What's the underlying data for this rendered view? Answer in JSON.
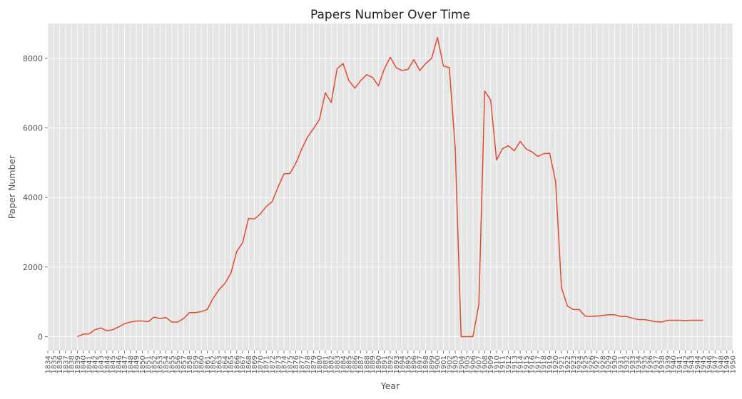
{
  "chart_data": {
    "type": "line",
    "title": "Papers Number Over Time",
    "xlabel": "Year",
    "ylabel": "Paper Number",
    "xlim": [
      1834,
      1950
    ],
    "ylim": [
      -400,
      9000
    ],
    "yticks": [
      0,
      2000,
      4000,
      6000,
      8000
    ],
    "grid": true,
    "colors": {
      "line": "#e24a33",
      "plot_background": "#e5e5e5",
      "grid": "#ffffff"
    },
    "series": [
      {
        "x": [
          1839,
          1840,
          1841,
          1842,
          1843,
          1844,
          1845,
          1846,
          1847,
          1848,
          1849,
          1850,
          1851,
          1852,
          1853,
          1854,
          1855,
          1856,
          1857,
          1858,
          1859,
          1860,
          1861,
          1862,
          1863,
          1864,
          1865,
          1866,
          1867,
          1868,
          1869,
          1870,
          1871,
          1872,
          1873,
          1874,
          1875,
          1876,
          1877,
          1878,
          1879,
          1880,
          1881,
          1882,
          1883,
          1884,
          1885,
          1886,
          1887,
          1888,
          1889,
          1890,
          1891,
          1892,
          1893,
          1894,
          1895,
          1896,
          1897,
          1898,
          1899,
          1900,
          1901,
          1902,
          1903,
          1904,
          1905,
          1906,
          1907,
          1908,
          1909,
          1910,
          1911,
          1912,
          1913,
          1914,
          1915,
          1916,
          1917,
          1918,
          1919,
          1920,
          1921,
          1922,
          1923,
          1924,
          1925,
          1926,
          1927,
          1928,
          1929,
          1930,
          1931,
          1932,
          1933,
          1934,
          1935,
          1936,
          1937,
          1938,
          1939,
          1940,
          1941,
          1942,
          1943,
          1944,
          1945
        ],
        "values": [
          0,
          70,
          80,
          200,
          250,
          170,
          200,
          280,
          370,
          420,
          450,
          450,
          430,
          560,
          520,
          550,
          420,
          420,
          520,
          690,
          690,
          720,
          780,
          1100,
          1350,
          1530,
          1820,
          2450,
          2700,
          3400,
          3380,
          3530,
          3740,
          3880,
          4300,
          4680,
          4690,
          4980,
          5390,
          5740,
          5980,
          6240,
          7010,
          6730,
          7700,
          7850,
          7360,
          7140,
          7360,
          7530,
          7450,
          7210,
          7700,
          8030,
          7730,
          7650,
          7680,
          7960,
          7650,
          7850,
          8000,
          8600,
          7780,
          7730,
          5430,
          0,
          0,
          0,
          920,
          7060,
          6800,
          5080,
          5400,
          5490,
          5340,
          5610,
          5400,
          5310,
          5180,
          5260,
          5270,
          4460,
          1400,
          880,
          780,
          780,
          590,
          580,
          590,
          610,
          630,
          630,
          580,
          580,
          530,
          490,
          490,
          460,
          430,
          420,
          470,
          470,
          470,
          460,
          470,
          470,
          470
        ]
      }
    ]
  }
}
